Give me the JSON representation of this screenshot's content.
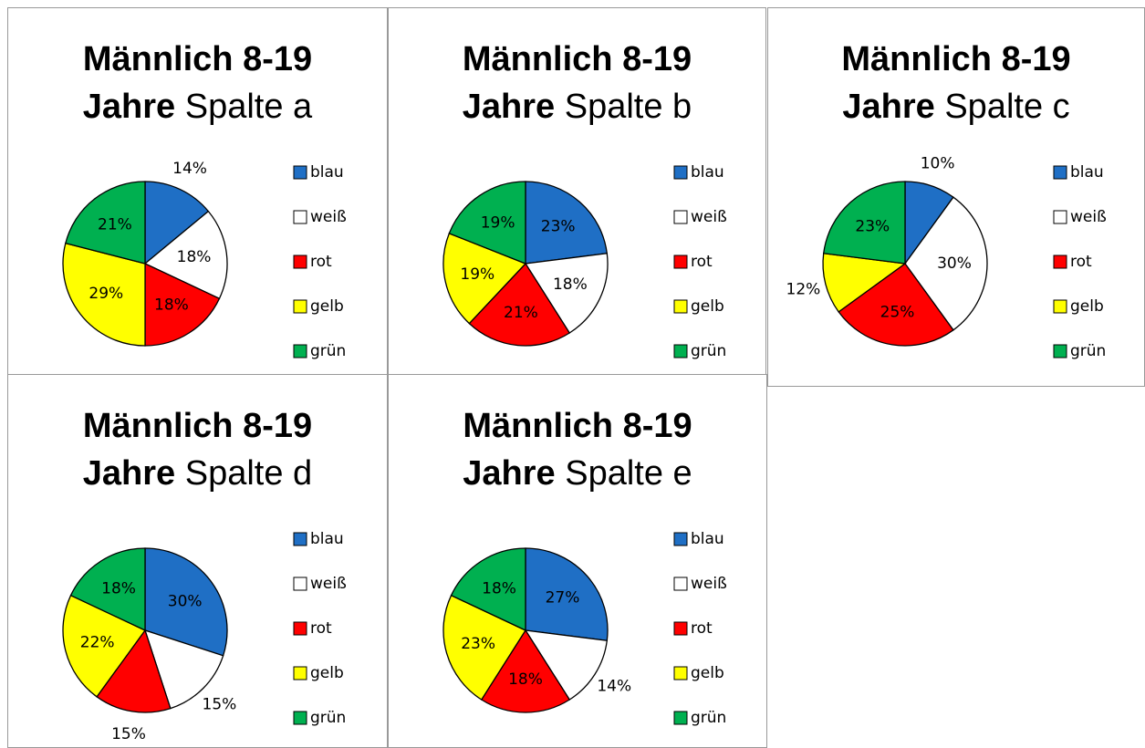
{
  "chart_data": [
    {
      "type": "pie",
      "title": {
        "bold": "Männlich 8-19 Jahre",
        "regular": "Spalte a"
      },
      "categories": [
        "blau",
        "weiß",
        "rot",
        "gelb",
        "grün"
      ],
      "colors": [
        "#1f6fc5",
        "#ffffff",
        "#ff0000",
        "#ffff00",
        "#00b050"
      ],
      "values": [
        14,
        18,
        18,
        29,
        21
      ],
      "value_labels": [
        "14%",
        "18%",
        "18%",
        "29%",
        "21%"
      ]
    },
    {
      "type": "pie",
      "title": {
        "bold": "Männlich 8-19 Jahre",
        "regular": "Spalte b"
      },
      "categories": [
        "blau",
        "weiß",
        "rot",
        "gelb",
        "grün"
      ],
      "colors": [
        "#1f6fc5",
        "#ffffff",
        "#ff0000",
        "#ffff00",
        "#00b050"
      ],
      "values": [
        23,
        18,
        21,
        19,
        19
      ],
      "value_labels": [
        "23%",
        "18%",
        "21%",
        "19%",
        "19%"
      ]
    },
    {
      "type": "pie",
      "title": {
        "bold": "Männlich 8-19 Jahre",
        "regular": "Spalte c"
      },
      "categories": [
        "blau",
        "weiß",
        "rot",
        "gelb",
        "grün"
      ],
      "colors": [
        "#1f6fc5",
        "#ffffff",
        "#ff0000",
        "#ffff00",
        "#00b050"
      ],
      "values": [
        10,
        30,
        25,
        12,
        23
      ],
      "value_labels": [
        "10%",
        "30%",
        "25%",
        "12%",
        "23%"
      ]
    },
    {
      "type": "pie",
      "title": {
        "bold": "Männlich 8-19 Jahre",
        "regular": "Spalte d"
      },
      "categories": [
        "blau",
        "weiß",
        "rot",
        "gelb",
        "grün"
      ],
      "colors": [
        "#1f6fc5",
        "#ffffff",
        "#ff0000",
        "#ffff00",
        "#00b050"
      ],
      "values": [
        30,
        15,
        15,
        22,
        18
      ],
      "value_labels": [
        "30%",
        "15%",
        "15%",
        "22%",
        "18%"
      ]
    },
    {
      "type": "pie",
      "title": {
        "bold": "Männlich 8-19 Jahre",
        "regular": "Spalte e"
      },
      "categories": [
        "blau",
        "weiß",
        "rot",
        "gelb",
        "grün"
      ],
      "colors": [
        "#1f6fc5",
        "#ffffff",
        "#ff0000",
        "#ffff00",
        "#00b050"
      ],
      "values": [
        27,
        14,
        18,
        23,
        18
      ],
      "value_labels": [
        "27%",
        "14%",
        "18%",
        "23%",
        "18%"
      ]
    }
  ]
}
